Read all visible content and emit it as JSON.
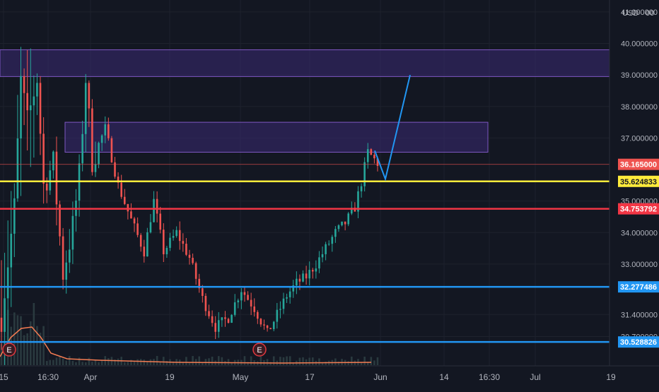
{
  "currency_label": "USD",
  "currency_suffix": "00",
  "colors": {
    "background": "#131722",
    "grid": "#1e222d",
    "axis_text": "#b2b5be",
    "up": "#26a69a",
    "down": "#ef5350",
    "zone_fill": "#3b2a72",
    "zone_border": "#7e57c2",
    "yellow_line": "#ffeb3b",
    "red_line": "#f23645",
    "blue_line": "#2196f3",
    "volume": "#2a3a3f",
    "volume_curve": "#f57c52"
  },
  "chart_data": {
    "type": "candlestick",
    "yaxis": {
      "ticks": [
        {
          "value": 41.0,
          "label": "41.000000"
        },
        {
          "value": 40.0,
          "label": "40.000000"
        },
        {
          "value": 39.0,
          "label": "39.000000"
        },
        {
          "value": 38.0,
          "label": "38.000000"
        },
        {
          "value": 37.0,
          "label": "37.000000"
        },
        {
          "value": 35.0,
          "label": "35.000000"
        },
        {
          "value": 34.0,
          "label": "34.000000"
        },
        {
          "value": 33.0,
          "label": "33.000000"
        },
        {
          "value": 31.4,
          "label": "31.400000"
        },
        {
          "value": 30.7,
          "label": "30.700000"
        }
      ],
      "ylim": [
        29.95,
        41.2
      ]
    },
    "xaxis": {
      "labels": [
        "15",
        "16:30",
        "Apr",
        "19",
        "May",
        "17",
        "Jun",
        "14",
        "16:30",
        "Jul",
        "19"
      ]
    },
    "price_lines": [
      {
        "value": 36.165,
        "label": "36.165000",
        "color": "#ef5350",
        "style": "thin"
      },
      {
        "value": 35.624833,
        "label": "35.624833",
        "color": "#ffeb3b",
        "style": "thick"
      },
      {
        "value": 34.753792,
        "label": "34.753792",
        "color": "#f23645",
        "style": "thick"
      },
      {
        "value": 32.277486,
        "label": "32.277486",
        "color": "#2196f3",
        "style": "thick"
      },
      {
        "value": 30.528826,
        "label": "30.528826",
        "color": "#2196f3",
        "style": "thick"
      }
    ],
    "zones": [
      {
        "y_top": 39.8,
        "y_bottom": 38.95
      },
      {
        "y_top": 37.5,
        "y_bottom": 36.55
      }
    ],
    "projection": [
      {
        "t": 0.0,
        "y": 36.6
      },
      {
        "t": 0.3,
        "y": 35.7
      },
      {
        "t": 1.0,
        "y": 39.0
      }
    ],
    "earnings_markers": [
      "E",
      "E"
    ],
    "series_waypoints": [
      {
        "t": 0,
        "y": 31.3
      },
      {
        "t": 4,
        "y": 34.8
      },
      {
        "t": 6,
        "y": 38.8
      },
      {
        "t": 8,
        "y": 37.5
      },
      {
        "t": 11,
        "y": 38.9
      },
      {
        "t": 13,
        "y": 35.5
      },
      {
        "t": 16,
        "y": 36.2
      },
      {
        "t": 19,
        "y": 32.7
      },
      {
        "t": 22,
        "y": 34.2
      },
      {
        "t": 24,
        "y": 35.8
      },
      {
        "t": 26,
        "y": 38.9
      },
      {
        "t": 28,
        "y": 36.3
      },
      {
        "t": 32,
        "y": 37.3
      },
      {
        "t": 36,
        "y": 35.5
      },
      {
        "t": 40,
        "y": 34.4
      },
      {
        "t": 44,
        "y": 33.4
      },
      {
        "t": 47,
        "y": 35.0
      },
      {
        "t": 50,
        "y": 33.4
      },
      {
        "t": 54,
        "y": 34.0
      },
      {
        "t": 58,
        "y": 33.2
      },
      {
        "t": 62,
        "y": 31.9
      },
      {
        "t": 66,
        "y": 31.0
      },
      {
        "t": 70,
        "y": 31.3
      },
      {
        "t": 74,
        "y": 32.2
      },
      {
        "t": 78,
        "y": 31.6
      },
      {
        "t": 82,
        "y": 30.8
      },
      {
        "t": 85,
        "y": 31.4
      },
      {
        "t": 88,
        "y": 32.0
      },
      {
        "t": 91,
        "y": 32.4
      },
      {
        "t": 94,
        "y": 32.6
      },
      {
        "t": 97,
        "y": 33.0
      },
      {
        "t": 100,
        "y": 33.5
      },
      {
        "t": 103,
        "y": 34.0
      },
      {
        "t": 106,
        "y": 34.3
      },
      {
        "t": 109,
        "y": 34.8
      },
      {
        "t": 111,
        "y": 35.6
      },
      {
        "t": 113,
        "y": 36.55
      },
      {
        "t": 116,
        "y": 36.2
      }
    ]
  }
}
